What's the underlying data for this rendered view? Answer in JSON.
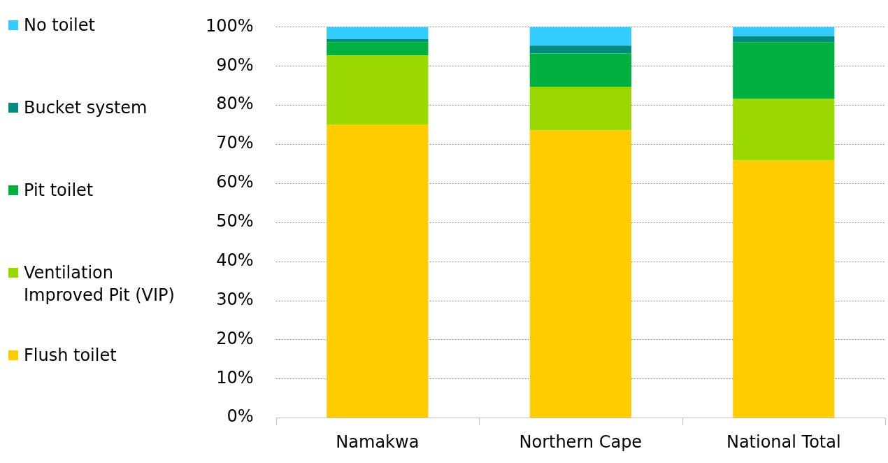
{
  "chart_data": {
    "type": "bar",
    "stacked": true,
    "categories": [
      "Namakwa",
      "Northern Cape",
      "National Total"
    ],
    "series": [
      {
        "name": "Flush toilet",
        "color": "#ffcc00",
        "values": [
          75,
          73.5,
          65.8
        ]
      },
      {
        "name": "Ventilation Improved Pit (VIP)",
        "color": "#99d900",
        "values": [
          17.7,
          11.2,
          15.8
        ]
      },
      {
        "name": "Pit toilet",
        "color": "#00b140",
        "values": [
          3.4,
          8.5,
          14.5
        ]
      },
      {
        "name": "Bucket system",
        "color": "#008c7e",
        "values": [
          0.8,
          2.0,
          1.5
        ]
      },
      {
        "name": "No toilet",
        "color": "#33ccff",
        "values": [
          3.1,
          4.8,
          2.4
        ]
      }
    ],
    "ylim": [
      0,
      100
    ],
    "yticks": [
      {
        "value": 0,
        "label": "0%"
      },
      {
        "value": 10,
        "label": "10%"
      },
      {
        "value": 20,
        "label": "20%"
      },
      {
        "value": 30,
        "label": "30%"
      },
      {
        "value": 40,
        "label": "40%"
      },
      {
        "value": 50,
        "label": "50%"
      },
      {
        "value": 60,
        "label": "60%"
      },
      {
        "value": 70,
        "label": "70%"
      },
      {
        "value": 80,
        "label": "80%"
      },
      {
        "value": 90,
        "label": "90%"
      },
      {
        "value": 100,
        "label": "100%"
      }
    ],
    "grid": "y",
    "legend": "left"
  }
}
